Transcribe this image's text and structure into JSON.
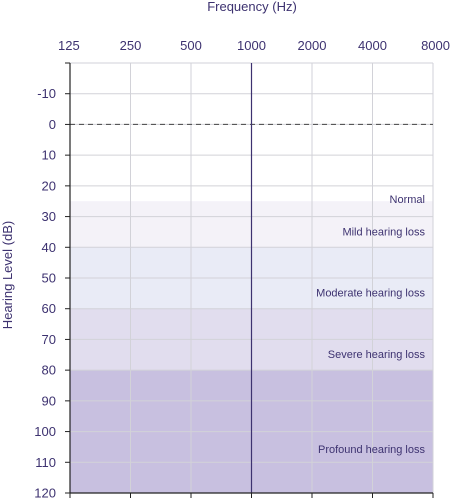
{
  "chart_data": {
    "type": "line",
    "title": "",
    "xlabel": "Frequency (Hz)",
    "ylabel": "Hearing Level (dB)",
    "x_ticks": [
      "125",
      "250",
      "500",
      "1000",
      "2000",
      "4000",
      "8000"
    ],
    "x_scale": "log2",
    "y_ticks": [
      "-10",
      "0",
      "10",
      "20",
      "30",
      "40",
      "50",
      "60",
      "70",
      "80",
      "90",
      "100",
      "110",
      "120"
    ],
    "ylim": [
      -20,
      120
    ],
    "y_inverted": true,
    "grid": true,
    "x_axis_position": "top",
    "reference_lines": [
      {
        "axis": "y",
        "value": 0,
        "style": "dashed"
      },
      {
        "axis": "x",
        "value": "1000",
        "style": "solid"
      }
    ],
    "bands": [
      {
        "label": "Normal",
        "from": 25,
        "to": 25,
        "color": "#ffffff"
      },
      {
        "label": "Mild hearing loss",
        "from": 25,
        "to": 40,
        "color": "#f4f2f8"
      },
      {
        "label": "Moderate hearing loss",
        "from": 40,
        "to": 60,
        "color": "#e9ebf6"
      },
      {
        "label": "Severe hearing loss",
        "from": 60,
        "to": 80,
        "color": "#e1ddee"
      },
      {
        "label": "Profound hearing loss",
        "from": 80,
        "to": 120,
        "color": "#c8c0e0"
      }
    ],
    "colors": {
      "text": "#3d3270",
      "axis": "#3d3270",
      "grid": "#d2d2d8"
    },
    "series": []
  }
}
